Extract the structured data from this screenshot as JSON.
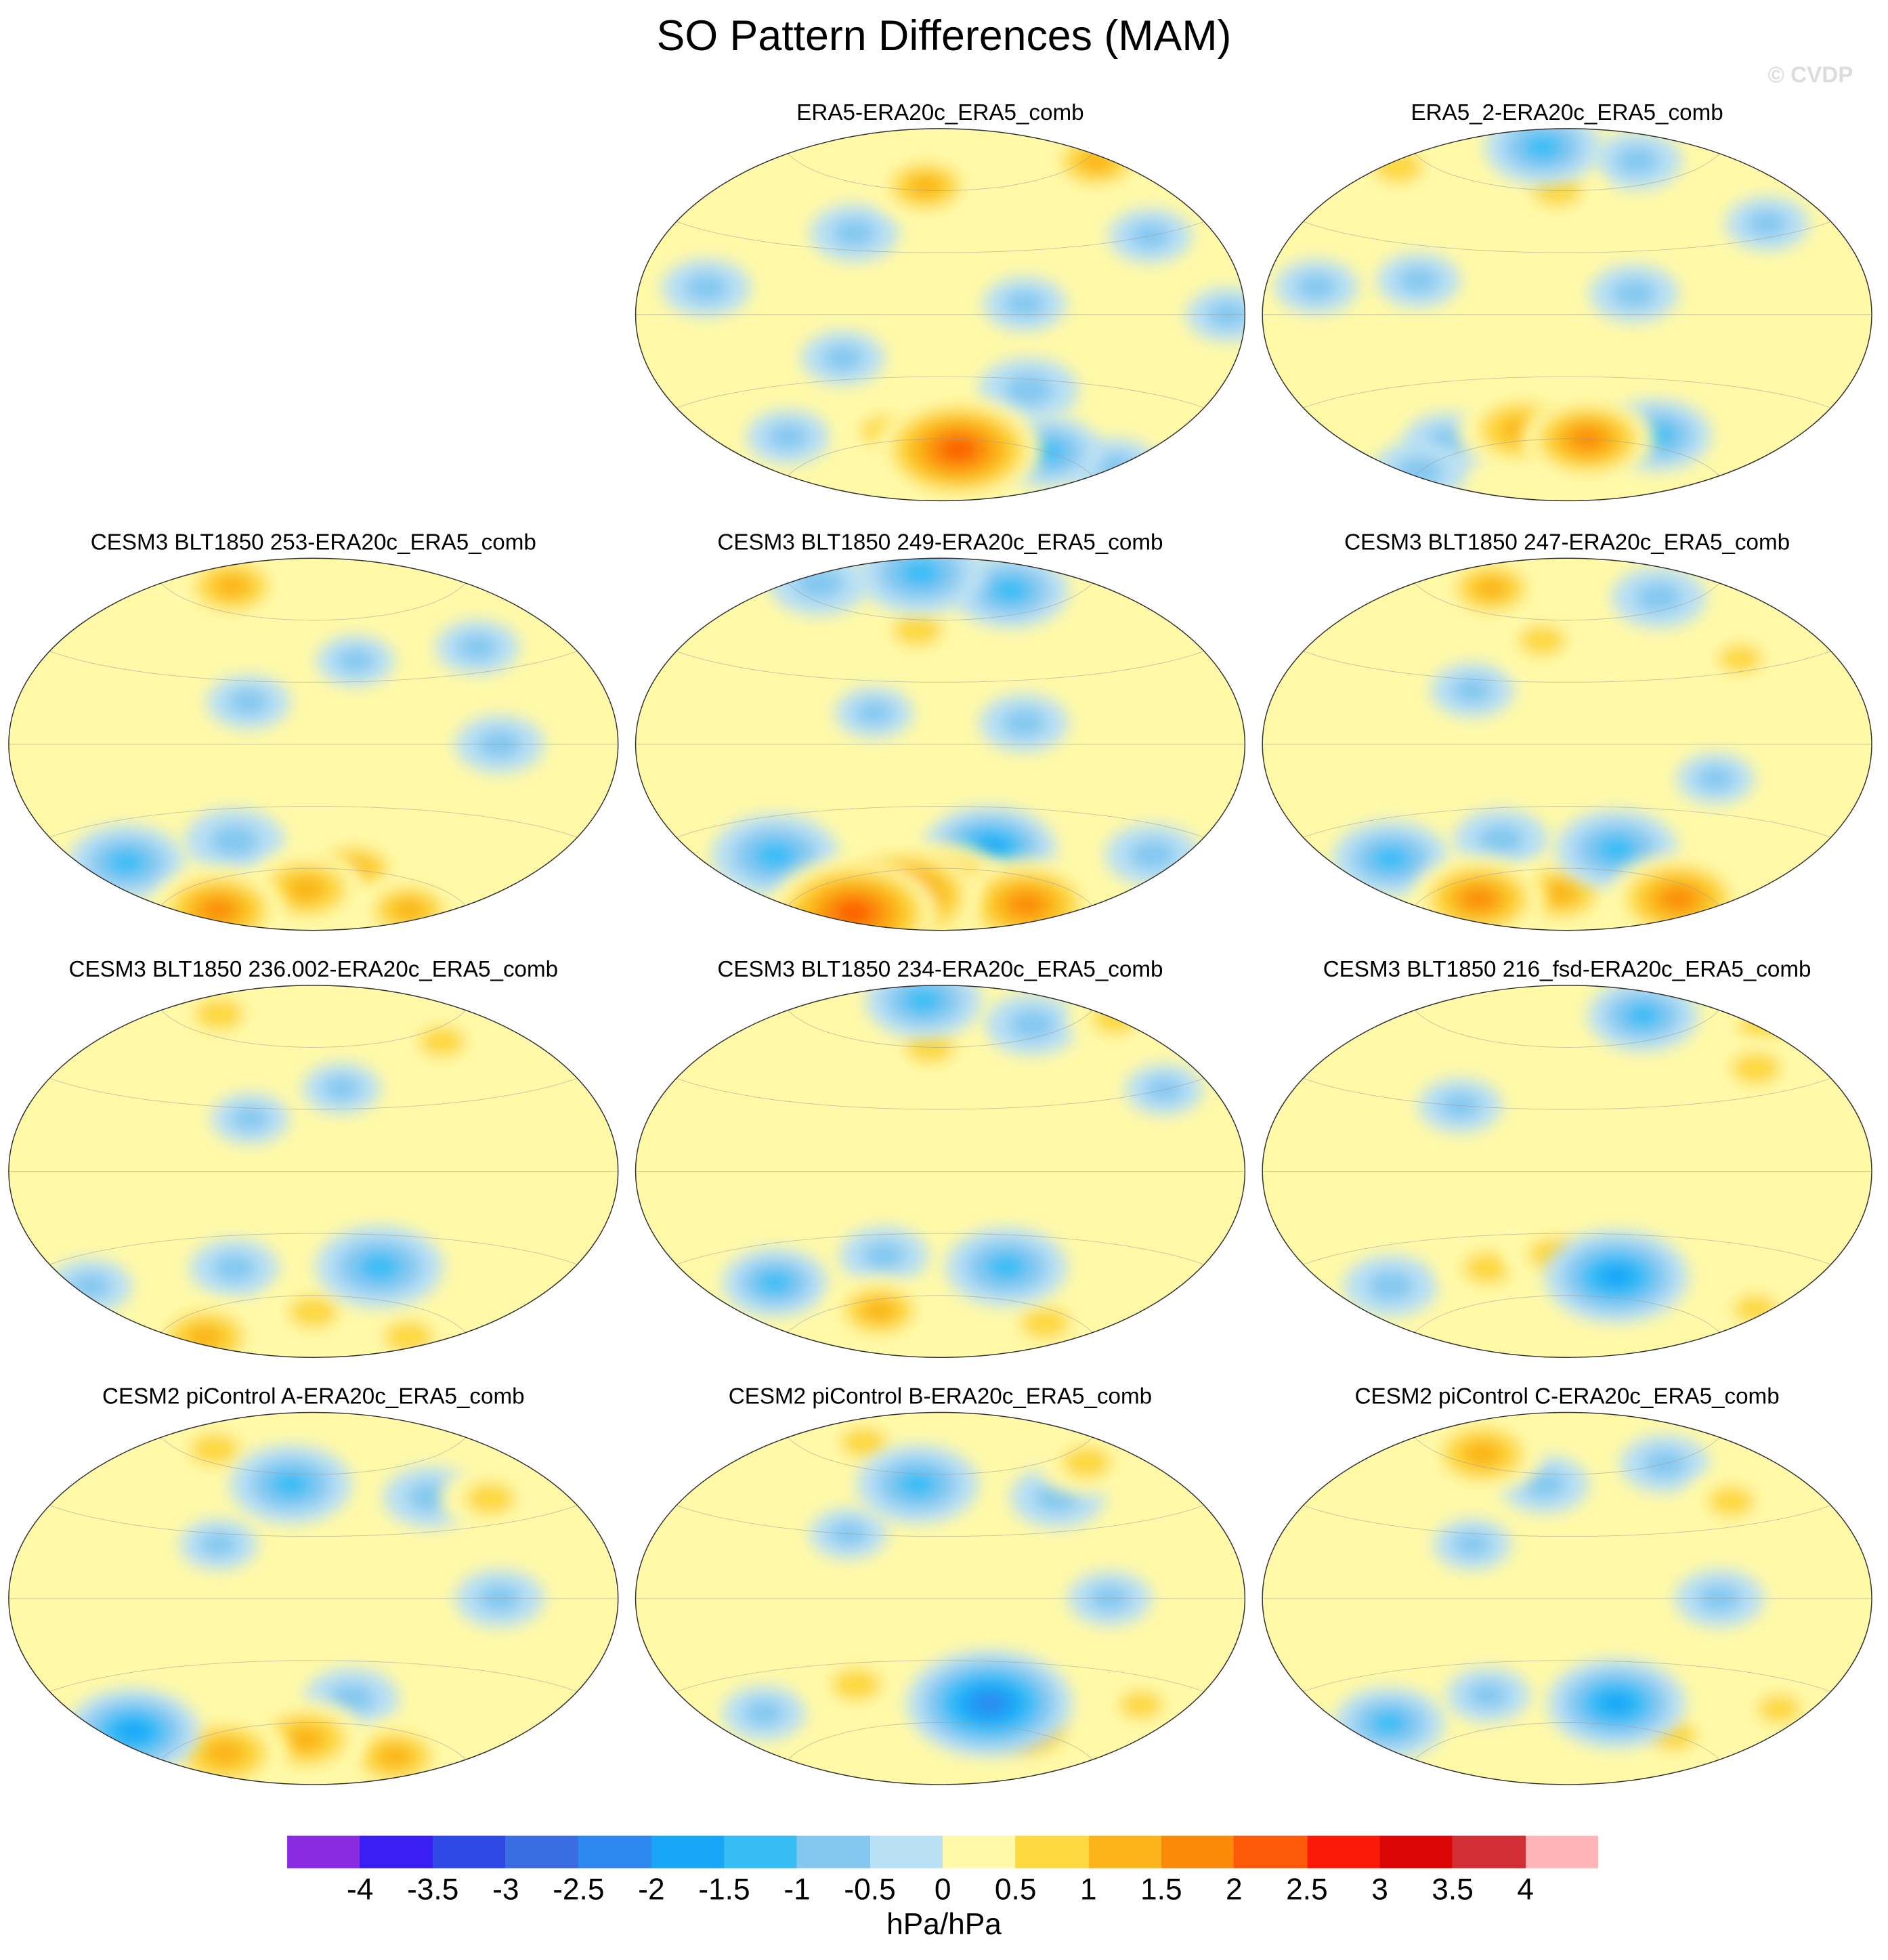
{
  "title": "SO Pattern Differences (MAM)",
  "watermark": "© CVDP",
  "panels": [
    {
      "title": "ERA5-ERA20c_ERA5_comb",
      "row": 0,
      "col": 1,
      "anomalies": [
        {
          "lon": -165,
          "lat": 62,
          "v": 1.1
        },
        {
          "lon": 20,
          "lat": 58,
          "v": 1.1
        },
        {
          "lon": -10,
          "lat": 30,
          "v": -0.7
        },
        {
          "lon": 150,
          "lat": 38,
          "v": -0.8
        },
        {
          "lon": 70,
          "lat": 10,
          "v": -0.8
        },
        {
          "lon": -100,
          "lat": 5,
          "v": -0.7
        },
        {
          "lon": 20,
          "lat": 0,
          "v": -0.7
        },
        {
          "lon": 150,
          "lat": -20,
          "v": -0.7
        },
        {
          "lon": -90,
          "lat": -35,
          "v": -1.0
        },
        {
          "lon": -130,
          "lat": -65,
          "v": 2.2
        },
        {
          "lon": 160,
          "lat": -55,
          "v": 0.9
        },
        {
          "lon": 80,
          "lat": -50,
          "v": -0.7
        },
        {
          "lon": -40,
          "lat": -60,
          "v": -1.2
        },
        {
          "lon": 30,
          "lat": -55,
          "v": -0.8
        }
      ]
    },
    {
      "title": "ERA5_2-ERA20c_ERA5_comb",
      "row": 0,
      "col": 2,
      "anomalies": [
        {
          "lon": 150,
          "lat": 80,
          "v": -1.3
        },
        {
          "lon": -160,
          "lat": 60,
          "v": 1.0
        },
        {
          "lon": 40,
          "lat": 55,
          "v": 1.0
        },
        {
          "lon": -50,
          "lat": 70,
          "v": -0.8
        },
        {
          "lon": -10,
          "lat": 35,
          "v": -0.7
        },
        {
          "lon": 60,
          "lat": 10,
          "v": -0.7
        },
        {
          "lon": -110,
          "lat": 10,
          "v": -0.8
        },
        {
          "lon": 120,
          "lat": 15,
          "v": -0.7
        },
        {
          "lon": -130,
          "lat": -60,
          "v": 1.6
        },
        {
          "lon": 170,
          "lat": -55,
          "v": 1.5
        },
        {
          "lon": -70,
          "lat": -55,
          "v": -1.2
        },
        {
          "lon": 40,
          "lat": -60,
          "v": -0.9
        },
        {
          "lon": 100,
          "lat": -55,
          "v": -0.8
        }
      ]
    },
    {
      "title": "CESM3 BLT1850 253-ERA20c_ERA5_comb",
      "row": 1,
      "col": 0,
      "anomalies": [
        {
          "lon": 90,
          "lat": 70,
          "v": 1.2
        },
        {
          "lon": -120,
          "lat": 40,
          "v": -0.6
        },
        {
          "lon": -30,
          "lat": 40,
          "v": -0.7
        },
        {
          "lon": 170,
          "lat": 20,
          "v": -0.7
        },
        {
          "lon": -40,
          "lat": 0,
          "v": -0.8
        },
        {
          "lon": 60,
          "lat": -45,
          "v": -1.3
        },
        {
          "lon": 150,
          "lat": -45,
          "v": -1.0
        },
        {
          "lon": -110,
          "lat": -60,
          "v": 1.1
        },
        {
          "lon": 60,
          "lat": -70,
          "v": 1.6
        },
        {
          "lon": -160,
          "lat": -70,
          "v": 1.4
        },
        {
          "lon": 0,
          "lat": -70,
          "v": 1.1
        }
      ]
    },
    {
      "title": "CESM3 BLT1850 249-ERA20c_ERA5_comb",
      "row": 1,
      "col": 1,
      "anomalies": [
        {
          "lon": 150,
          "lat": 82,
          "v": -1.5
        },
        {
          "lon": -50,
          "lat": 70,
          "v": -1.3
        },
        {
          "lon": 50,
          "lat": 65,
          "v": -1.0
        },
        {
          "lon": -170,
          "lat": 55,
          "v": 1.0
        },
        {
          "lon": 170,
          "lat": 15,
          "v": -0.6
        },
        {
          "lon": -100,
          "lat": 10,
          "v": -0.8
        },
        {
          "lon": 80,
          "lat": -45,
          "v": -1.5
        },
        {
          "lon": -110,
          "lat": -50,
          "v": -1.6
        },
        {
          "lon": 60,
          "lat": -72,
          "v": 2.3
        },
        {
          "lon": 150,
          "lat": -72,
          "v": 2.1
        },
        {
          "lon": -150,
          "lat": -70,
          "v": 1.8
        },
        {
          "lon": -20,
          "lat": -70,
          "v": 1.8
        },
        {
          "lon": 10,
          "lat": -40,
          "v": -0.9
        }
      ]
    },
    {
      "title": "CESM3 BLT1850 247-ERA20c_ERA5_comb",
      "row": 1,
      "col": 2,
      "anomalies": [
        {
          "lon": 100,
          "lat": 70,
          "v": 1.1
        },
        {
          "lon": -40,
          "lat": 65,
          "v": -0.9
        },
        {
          "lon": -170,
          "lat": 50,
          "v": 0.9
        },
        {
          "lon": 150,
          "lat": 25,
          "v": -0.7
        },
        {
          "lon": -30,
          "lat": 35,
          "v": 0.8
        },
        {
          "lon": 70,
          "lat": -45,
          "v": -1.3
        },
        {
          "lon": -110,
          "lat": -50,
          "v": -1.4
        },
        {
          "lon": 160,
          "lat": -45,
          "v": -0.9
        },
        {
          "lon": 90,
          "lat": -68,
          "v": 1.6
        },
        {
          "lon": -10,
          "lat": -65,
          "v": 1.7
        },
        {
          "lon": -160,
          "lat": -72,
          "v": 1.2
        },
        {
          "lon": -60,
          "lat": -15,
          "v": -0.6
        }
      ]
    },
    {
      "title": "CESM3 BLT1850 236.002-ERA20c_ERA5_comb",
      "row": 2,
      "col": 0,
      "anomalies": [
        {
          "lon": 80,
          "lat": 68,
          "v": 1.0
        },
        {
          "lon": -30,
          "lat": 55,
          "v": 0.9
        },
        {
          "lon": -130,
          "lat": 40,
          "v": -0.6
        },
        {
          "lon": 170,
          "lat": 25,
          "v": -0.6
        },
        {
          "lon": -100,
          "lat": -45,
          "v": -1.5
        },
        {
          "lon": 150,
          "lat": -45,
          "v": -0.8
        },
        {
          "lon": 40,
          "lat": -40,
          "v": -0.7
        },
        {
          "lon": 50,
          "lat": -68,
          "v": 1.3
        },
        {
          "lon": -150,
          "lat": -68,
          "v": 1.0
        },
        {
          "lon": 0,
          "lat": -70,
          "v": 1.0
        }
      ]
    },
    {
      "title": "CESM3 BLT1850 234-ERA20c_ERA5_comb",
      "row": 2,
      "col": 1,
      "anomalies": [
        {
          "lon": 160,
          "lat": 82,
          "v": -1.3
        },
        {
          "lon": -160,
          "lat": 60,
          "v": 1.0
        },
        {
          "lon": -40,
          "lat": 65,
          "v": -0.9
        },
        {
          "lon": 30,
          "lat": 55,
          "v": 0.9
        },
        {
          "lon": 80,
          "lat": -45,
          "v": -1.1
        },
        {
          "lon": -100,
          "lat": -45,
          "v": -1.4
        },
        {
          "lon": 170,
          "lat": -40,
          "v": -0.8
        },
        {
          "lon": 140,
          "lat": -65,
          "v": 1.1
        },
        {
          "lon": -20,
          "lat": -65,
          "v": 1.0
        },
        {
          "lon": 0,
          "lat": 30,
          "v": -0.6
        }
      ]
    },
    {
      "title": "CESM3 BLT1850 216_fsd-ERA20c_ERA5_comb",
      "row": 2,
      "col": 2,
      "anomalies": [
        {
          "lon": -40,
          "lat": 70,
          "v": -1.2
        },
        {
          "lon": 30,
          "lat": 50,
          "v": 1.0
        },
        {
          "lon": -10,
          "lat": 40,
          "v": 1.0
        },
        {
          "lon": 140,
          "lat": 30,
          "v": -0.7
        },
        {
          "lon": -110,
          "lat": -50,
          "v": -1.8
        },
        {
          "lon": 70,
          "lat": -45,
          "v": -0.9
        },
        {
          "lon": 150,
          "lat": -45,
          "v": 1.0
        },
        {
          "lon": -160,
          "lat": -40,
          "v": 1.0
        },
        {
          "lon": 20,
          "lat": -50,
          "v": 0.8
        }
      ]
    },
    {
      "title": "CESM2 piControl A-ERA20c_ERA5_comb",
      "row": 3,
      "col": 0,
      "anomalies": [
        {
          "lon": -170,
          "lat": 55,
          "v": -1.4
        },
        {
          "lon": -60,
          "lat": 45,
          "v": -0.9
        },
        {
          "lon": 90,
          "lat": 65,
          "v": 1.0
        },
        {
          "lon": -20,
          "lat": 40,
          "v": 1.0
        },
        {
          "lon": 150,
          "lat": 25,
          "v": -0.6
        },
        {
          "lon": -40,
          "lat": 0,
          "v": -0.8
        },
        {
          "lon": 50,
          "lat": -50,
          "v": -1.6
        },
        {
          "lon": -120,
          "lat": -48,
          "v": -0.9
        },
        {
          "lon": 90,
          "lat": -68,
          "v": 1.5
        },
        {
          "lon": -160,
          "lat": -68,
          "v": 1.4
        },
        {
          "lon": -30,
          "lat": -70,
          "v": 1.2
        }
      ]
    },
    {
      "title": "CESM2 piControl B-ERA20c_ERA5_comb",
      "row": 3,
      "col": 1,
      "anomalies": [
        {
          "lon": -170,
          "lat": 55,
          "v": -1.4
        },
        {
          "lon": -60,
          "lat": 45,
          "v": -0.9
        },
        {
          "lon": 100,
          "lat": 70,
          "v": 0.9
        },
        {
          "lon": -10,
          "lat": 55,
          "v": 1.0
        },
        {
          "lon": 150,
          "lat": 30,
          "v": -0.6
        },
        {
          "lon": -50,
          "lat": 0,
          "v": -0.7
        },
        {
          "lon": -110,
          "lat": -50,
          "v": -2.2
        },
        {
          "lon": 70,
          "lat": -45,
          "v": -0.7
        },
        {
          "lon": -60,
          "lat": -60,
          "v": 1.2
        },
        {
          "lon": 150,
          "lat": -40,
          "v": 1.0
        },
        {
          "lon": 0,
          "lat": -40,
          "v": 0.8
        }
      ]
    },
    {
      "title": "CESM2 piControl C-ERA20c_ERA5_comb",
      "row": 3,
      "col": 2,
      "anomalies": [
        {
          "lon": 110,
          "lat": 65,
          "v": 1.4
        },
        {
          "lon": -170,
          "lat": 55,
          "v": -0.8
        },
        {
          "lon": -50,
          "lat": 60,
          "v": -0.8
        },
        {
          "lon": -30,
          "lat": 40,
          "v": 0.9
        },
        {
          "lon": -60,
          "lat": 0,
          "v": -0.8
        },
        {
          "lon": 150,
          "lat": 25,
          "v": -0.6
        },
        {
          "lon": -110,
          "lat": -50,
          "v": -1.7
        },
        {
          "lon": 60,
          "lat": -48,
          "v": -1.2
        },
        {
          "lon": 150,
          "lat": -45,
          "v": -0.7
        },
        {
          "lon": -40,
          "lat": -60,
          "v": 0.9
        },
        {
          "lon": 10,
          "lat": -40,
          "v": 0.8
        }
      ]
    }
  ],
  "colorbar": {
    "levels": [
      "-4",
      "-3.5",
      "-3",
      "-2.5",
      "-2",
      "-1.5",
      "-1",
      "-0.5",
      "0",
      "0.5",
      "1",
      "1.5",
      "2",
      "2.5",
      "3",
      "3.5",
      "4"
    ],
    "colors": [
      "#8a2be2",
      "#3a1ff5",
      "#2f49e6",
      "#3a6ee0",
      "#2f88f0",
      "#18a6f8",
      "#36bdf6",
      "#84c8f0",
      "#b9e0f4",
      "#fff9a8",
      "#fdd83e",
      "#fbb418",
      "#fb8a08",
      "#fc5a06",
      "#fb1a08",
      "#dc0505",
      "#d22e36",
      "#ffb5b8"
    ],
    "units": "hPa/hPa"
  }
}
